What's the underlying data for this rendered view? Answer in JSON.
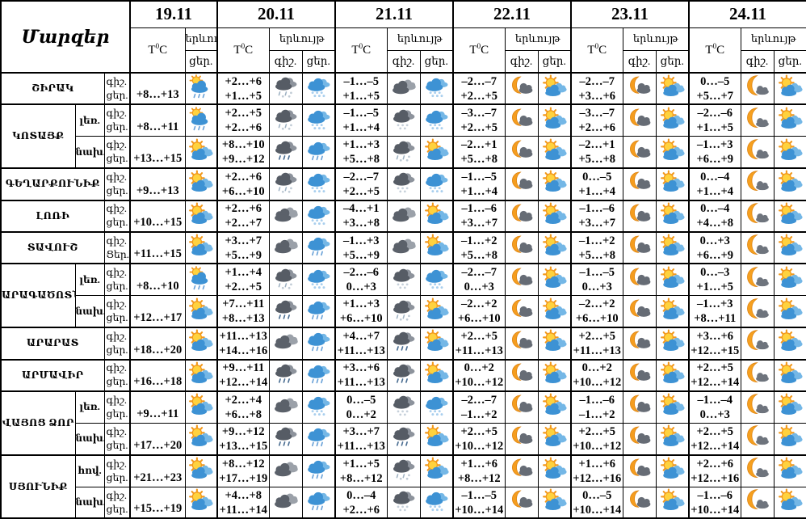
{
  "table": {
    "corner_label": "Մարզեր",
    "temp_label": {
      "pre": "T",
      "sup": "0",
      "post": "C"
    },
    "phenomenon_label": "երևույթ",
    "header_night_label": "գիշ.",
    "header_day_label": "ցեր.",
    "dates": [
      {
        "label": "19.11",
        "day_only": true
      },
      {
        "label": "20.11",
        "day_only": false
      },
      {
        "label": "21.11",
        "day_only": false
      },
      {
        "label": "22.11",
        "day_only": false
      },
      {
        "label": "23.11",
        "day_only": false
      },
      {
        "label": "24.11",
        "day_only": false
      }
    ],
    "regions": [
      {
        "name": "ՇԻՐԱԿ",
        "rows": [
          {
            "sub": null,
            "night_label": "գիշ.",
            "day_label": "ցեր.",
            "cells": [
              {
                "day_temp": "+8…+13",
                "day_icon": "sun-cloud-rain"
              },
              {
                "night_temp": "+2…+6",
                "day_temp": "+1…+5",
                "night_icon": "dark-cloud-sleet",
                "day_icon": "blue-cloud-snow"
              },
              {
                "night_temp": "–1…–5",
                "day_temp": "+1…+5",
                "night_icon": "dark-cloud",
                "day_icon": "blue-cloud-snow"
              },
              {
                "night_temp": "–2…–7",
                "day_temp": "+2…+5",
                "night_icon": "moon-cloud",
                "day_icon": "sun-cloud"
              },
              {
                "night_temp": "–2…–7",
                "day_temp": "+3…+6",
                "night_icon": "moon-cloud",
                "day_icon": "sun-cloud"
              },
              {
                "night_temp": "0…–5",
                "day_temp": "+5…+7",
                "night_icon": "moon-small-cloud",
                "day_icon": "sun-cloud"
              }
            ]
          }
        ]
      },
      {
        "name": "ԿՈՏԱՅՔ",
        "rows": [
          {
            "sub": "լեռ.",
            "night_label": "գիշ.",
            "day_label": "ցեր.",
            "cells": [
              {
                "day_temp": "+8…+11",
                "day_icon": "sun-cloud-rain"
              },
              {
                "night_temp": "+2…+5",
                "day_temp": "+2…+6",
                "night_icon": "dark-cloud-sleet",
                "day_icon": "blue-cloud-snow"
              },
              {
                "night_temp": "–1…–5",
                "day_temp": "+1…+4",
                "night_icon": "dark-cloud-snow",
                "day_icon": "blue-cloud-snow"
              },
              {
                "night_temp": "–3…–7",
                "day_temp": "+2…+5",
                "night_icon": "moon-cloud",
                "day_icon": "sun-cloud"
              },
              {
                "night_temp": "–3…–7",
                "day_temp": "+2…+6",
                "night_icon": "moon-cloud",
                "day_icon": "sun-cloud"
              },
              {
                "night_temp": "–2…–6",
                "day_temp": "+1…+5",
                "night_icon": "moon-small-cloud",
                "day_icon": "sun-cloud"
              }
            ]
          },
          {
            "sub": "նախ.",
            "night_label": "գիշ.",
            "day_label": "ցեր.",
            "cells": [
              {
                "day_temp": "+13…+15",
                "day_icon": "sun-cloud"
              },
              {
                "night_temp": "+8…+10",
                "day_temp": "+9…+12",
                "night_icon": "dark-cloud-rain",
                "day_icon": "blue-cloud-rain"
              },
              {
                "night_temp": "+1…+3",
                "day_temp": "+5…+8",
                "night_icon": "dark-cloud-sleet",
                "day_icon": "sun-cloud"
              },
              {
                "night_temp": "–2…+1",
                "day_temp": "+5…+8",
                "night_icon": "moon-cloud",
                "day_icon": "sun-cloud"
              },
              {
                "night_temp": "–2…+1",
                "day_temp": "+5…+8",
                "night_icon": "moon-cloud",
                "day_icon": "sun-cloud"
              },
              {
                "night_temp": "–1…+3",
                "day_temp": "+6…+9",
                "night_icon": "moon-small-cloud",
                "day_icon": "sun-cloud"
              }
            ]
          }
        ]
      },
      {
        "name": "ԳԵՂԱՐՔՈՒՆԻՔ",
        "rows": [
          {
            "sub": null,
            "night_label": "գիշ.",
            "day_label": "ցեր.",
            "cells": [
              {
                "day_temp": "+9…+13",
                "day_icon": "sun-cloud"
              },
              {
                "night_temp": "+2…+6",
                "day_temp": "+6…+10",
                "night_icon": "dark-cloud-sleet",
                "day_icon": "blue-cloud-snow"
              },
              {
                "night_temp": "–2…–7",
                "day_temp": "+2…+5",
                "night_icon": "dark-cloud-snow",
                "day_icon": "blue-cloud-snow"
              },
              {
                "night_temp": "–1…–5",
                "day_temp": "+1…+4",
                "night_icon": "moon-cloud",
                "day_icon": "sun-cloud"
              },
              {
                "night_temp": "0…–5",
                "day_temp": "+1…+4",
                "night_icon": "moon-cloud",
                "day_icon": "sun-cloud"
              },
              {
                "night_temp": "0…–4",
                "day_temp": "+1…+4",
                "night_icon": "moon-small-cloud",
                "day_icon": "sun-cloud"
              }
            ]
          }
        ]
      },
      {
        "name": "ԼՈՌԻ",
        "rows": [
          {
            "sub": null,
            "night_label": "գիշ.",
            "day_label": "ցեր.",
            "cells": [
              {
                "day_temp": "+10…+15",
                "day_icon": "sun-cloud"
              },
              {
                "night_temp": "+2…+6",
                "day_temp": "+2…+7",
                "night_icon": "dark-cloud",
                "day_icon": "blue-cloud-snow"
              },
              {
                "night_temp": "–4…+1",
                "day_temp": "+3…+8",
                "night_icon": "dark-cloud",
                "day_icon": "sun-cloud"
              },
              {
                "night_temp": "–1…–6",
                "day_temp": "+3…+7",
                "night_icon": "moon-cloud",
                "day_icon": "sun-cloud"
              },
              {
                "night_temp": "–1…–6",
                "day_temp": "+3…+7",
                "night_icon": "moon-cloud",
                "day_icon": "sun-cloud"
              },
              {
                "night_temp": "0…–4",
                "day_temp": "+4…+8",
                "night_icon": "moon-small-cloud",
                "day_icon": "sun-cloud"
              }
            ]
          }
        ]
      },
      {
        "name": "ՏԱՎՈՒՇ",
        "rows": [
          {
            "sub": null,
            "night_label": "գիշ.",
            "day_label": "Ցեր.",
            "cells": [
              {
                "day_temp": "+11…+15",
                "day_icon": "sun-cloud"
              },
              {
                "night_temp": "+3…+7",
                "day_temp": "+5…+9",
                "night_icon": "dark-cloud",
                "day_icon": "blue-cloud-rain"
              },
              {
                "night_temp": "–1…+3",
                "day_temp": "+5…+9",
                "night_icon": "dark-cloud",
                "day_icon": "sun-cloud"
              },
              {
                "night_temp": "–1…+2",
                "day_temp": "+5…+8",
                "night_icon": "moon-cloud",
                "day_icon": "sun-cloud"
              },
              {
                "night_temp": "–1…+2",
                "day_temp": "+5…+8",
                "night_icon": "moon-cloud",
                "day_icon": "sun-cloud"
              },
              {
                "night_temp": "0…+3",
                "day_temp": "+6…+9",
                "night_icon": "moon-small-cloud",
                "day_icon": "sun-cloud"
              }
            ]
          }
        ]
      },
      {
        "name": "ԱՐԱԳԱԾՈՏՆ",
        "rows": [
          {
            "sub": "լեռ.",
            "night_label": "գիշ.",
            "day_label": "ցեր.",
            "cells": [
              {
                "day_temp": "+8…+10",
                "day_icon": "sun-cloud-rain"
              },
              {
                "night_temp": "+1…+4",
                "day_temp": "+2…+5",
                "night_icon": "dark-cloud-sleet",
                "day_icon": "blue-cloud-snow"
              },
              {
                "night_temp": "–2…–6",
                "day_temp": "0…+3",
                "night_icon": "dark-cloud-snow",
                "day_icon": "blue-cloud-snow"
              },
              {
                "night_temp": "–2…–7",
                "day_temp": "0…+3",
                "night_icon": "moon-cloud",
                "day_icon": "sun-cloud"
              },
              {
                "night_temp": "–1…–5",
                "day_temp": "0…+3",
                "night_icon": "moon-cloud",
                "day_icon": "sun-cloud"
              },
              {
                "night_temp": "0…–3",
                "day_temp": "+1…+5",
                "night_icon": "moon-small-cloud",
                "day_icon": "sun-cloud"
              }
            ]
          },
          {
            "sub": "նախ.",
            "night_label": "գիշ.",
            "day_label": "ցեր.",
            "cells": [
              {
                "day_temp": "+12…+17",
                "day_icon": "sun-cloud"
              },
              {
                "night_temp": "+7…+11",
                "day_temp": "+8…+13",
                "night_icon": "dark-cloud-rain",
                "day_icon": "blue-cloud-rain"
              },
              {
                "night_temp": "+1…+3",
                "day_temp": "+6…+10",
                "night_icon": "dark-cloud-sleet",
                "day_icon": "sun-cloud"
              },
              {
                "night_temp": "–2…+2",
                "day_temp": "+6…+10",
                "night_icon": "moon-cloud",
                "day_icon": "sun-cloud"
              },
              {
                "night_temp": "–2…+2",
                "day_temp": "+6…+10",
                "night_icon": "moon-cloud",
                "day_icon": "sun-cloud"
              },
              {
                "night_temp": "–1…+3",
                "day_temp": "+8…+11",
                "night_icon": "moon-small-cloud",
                "day_icon": "sun-cloud"
              }
            ]
          }
        ]
      },
      {
        "name": "ԱՐԱՐԱՏ",
        "rows": [
          {
            "sub": null,
            "night_label": "գիշ.",
            "day_label": "ցեր.",
            "cells": [
              {
                "day_temp": "+18…+20",
                "day_icon": "sun-cloud"
              },
              {
                "night_temp": "+11…+13",
                "day_temp": "+14…+16",
                "night_icon": "dark-cloud",
                "day_icon": "blue-cloud-rain"
              },
              {
                "night_temp": "+4…+7",
                "day_temp": "+11…+13",
                "night_icon": "dark-cloud-rain",
                "day_icon": "sun-cloud"
              },
              {
                "night_temp": "+2…+5",
                "day_temp": "+11…+13",
                "night_icon": "moon-cloud",
                "day_icon": "sun-cloud"
              },
              {
                "night_temp": "+2…+5",
                "day_temp": "+11…+13",
                "night_icon": "moon-cloud",
                "day_icon": "sun-cloud"
              },
              {
                "night_temp": "+3…+6",
                "day_temp": "+12…+15",
                "night_icon": "moon-small-cloud",
                "day_icon": "sun-cloud"
              }
            ]
          }
        ]
      },
      {
        "name": "ԱՐՄԱՎԻՐ",
        "rows": [
          {
            "sub": null,
            "night_label": "գիշ.",
            "day_label": "ցեր.",
            "cells": [
              {
                "day_temp": "+16…+18",
                "day_icon": "sun-cloud"
              },
              {
                "night_temp": "+9…+11",
                "day_temp": "+12…+14",
                "night_icon": "dark-cloud-rain",
                "day_icon": "blue-cloud-rain"
              },
              {
                "night_temp": "+3…+6",
                "day_temp": "+11…+13",
                "night_icon": "dark-cloud-rain",
                "day_icon": "sun-cloud"
              },
              {
                "night_temp": "0…+2",
                "day_temp": "+10…+12",
                "night_icon": "moon-cloud",
                "day_icon": "sun-cloud"
              },
              {
                "night_temp": "0…+2",
                "day_temp": "+10…+12",
                "night_icon": "moon-cloud",
                "day_icon": "sun-cloud"
              },
              {
                "night_temp": "+2…+5",
                "day_temp": "+12…+14",
                "night_icon": "moon-small-cloud",
                "day_icon": "sun-cloud"
              }
            ]
          }
        ]
      },
      {
        "name": "ՎԱՅՈՑ ՁՈՐ",
        "rows": [
          {
            "sub": "լեռ.",
            "night_label": "գիշ.",
            "day_label": "ցեր.",
            "cells": [
              {
                "day_temp": "+9…+11",
                "day_icon": "sun-cloud"
              },
              {
                "night_temp": "+2…+4",
                "day_temp": "+6…+8",
                "night_icon": "dark-cloud",
                "day_icon": "blue-cloud-snow"
              },
              {
                "night_temp": "0…–5",
                "day_temp": "0…+2",
                "night_icon": "dark-cloud-snow",
                "day_icon": "blue-cloud-snow"
              },
              {
                "night_temp": "–2…–7",
                "day_temp": "–1…+2",
                "night_icon": "moon-cloud",
                "day_icon": "sun-cloud"
              },
              {
                "night_temp": "–1…–6",
                "day_temp": "–1…+2",
                "night_icon": "moon-cloud",
                "day_icon": "sun-cloud"
              },
              {
                "night_temp": "–1…–4",
                "day_temp": "0…+3",
                "night_icon": "moon-small-cloud",
                "day_icon": "sun-cloud"
              }
            ]
          },
          {
            "sub": "նախ.",
            "night_label": "գիշ.",
            "day_label": "ցեր.",
            "cells": [
              {
                "day_temp": "+17…+20",
                "day_icon": "sun-cloud"
              },
              {
                "night_temp": "+9…+12",
                "day_temp": "+13…+15",
                "night_icon": "dark-cloud-rain",
                "day_icon": "blue-cloud-rain"
              },
              {
                "night_temp": "+3…+7",
                "day_temp": "+11…+13",
                "night_icon": "dark-cloud-rain",
                "day_icon": "sun-cloud"
              },
              {
                "night_temp": "+2…+5",
                "day_temp": "+10…+12",
                "night_icon": "moon-cloud",
                "day_icon": "sun-cloud"
              },
              {
                "night_temp": "+2…+5",
                "day_temp": "+10…+12",
                "night_icon": "moon-cloud",
                "day_icon": "sun-cloud"
              },
              {
                "night_temp": "+2…+5",
                "day_temp": "+12…+14",
                "night_icon": "moon-small-cloud",
                "day_icon": "sun-cloud"
              }
            ]
          }
        ]
      },
      {
        "name": "ՍՅՈՒՆԻՔ",
        "rows": [
          {
            "sub": "հով.",
            "night_label": "գիշ.",
            "day_label": "ցեր.",
            "cells": [
              {
                "day_temp": "+21…+23",
                "day_icon": "sun-cloud"
              },
              {
                "night_temp": "+8…+12",
                "day_temp": "+17…+19",
                "night_icon": "dark-cloud",
                "day_icon": "blue-cloud-rain"
              },
              {
                "night_temp": "+1…+5",
                "day_temp": "+8…+12",
                "night_icon": "dark-cloud-sleet",
                "day_icon": "sun-cloud"
              },
              {
                "night_temp": "+1…+6",
                "day_temp": "+8…+12",
                "night_icon": "moon-cloud",
                "day_icon": "sun-cloud"
              },
              {
                "night_temp": "+1…+6",
                "day_temp": "+12…+16",
                "night_icon": "moon-cloud",
                "day_icon": "sun-cloud"
              },
              {
                "night_temp": "+2…+6",
                "day_temp": "+12…+16",
                "night_icon": "moon-small-cloud",
                "day_icon": "sun-cloud"
              }
            ]
          },
          {
            "sub": "նախ.",
            "night_label": "գիշ.",
            "day_label": "ցեր.",
            "cells": [
              {
                "day_temp": "+15…+19",
                "day_icon": "sun-cloud"
              },
              {
                "night_temp": "+4…+8",
                "day_temp": "+11…+14",
                "night_icon": "dark-cloud",
                "day_icon": "blue-cloud-rain"
              },
              {
                "night_temp": "0…–4",
                "day_temp": "+2…+6",
                "night_icon": "dark-cloud-snow",
                "day_icon": "blue-cloud-snow"
              },
              {
                "night_temp": "–1…–5",
                "day_temp": "+10…+14",
                "night_icon": "moon-cloud",
                "day_icon": "sun-cloud"
              },
              {
                "night_temp": "0…–5",
                "day_temp": "+10…+14",
                "night_icon": "moon-cloud",
                "day_icon": "sun-cloud"
              },
              {
                "night_temp": "–1…–6",
                "day_temp": "+10…+14",
                "night_icon": "moon-small-cloud",
                "day_icon": "sun-cloud"
              }
            ]
          }
        ]
      }
    ],
    "icon_colors": {
      "sun": "#ffd23e",
      "sun_ray": "#f2991c",
      "blue_cloud": "#3d92d4",
      "blue_cloud_light": "#74b7e6",
      "dark_cloud": "#575d66",
      "dark_cloud_light": "#9ba1a9",
      "moon": "#f59d1e",
      "rain_blue": "#6ca3d8",
      "rain_dark": "#4c6f93",
      "snow": "#a9cfee",
      "sleet": "#c0cbd5"
    }
  }
}
